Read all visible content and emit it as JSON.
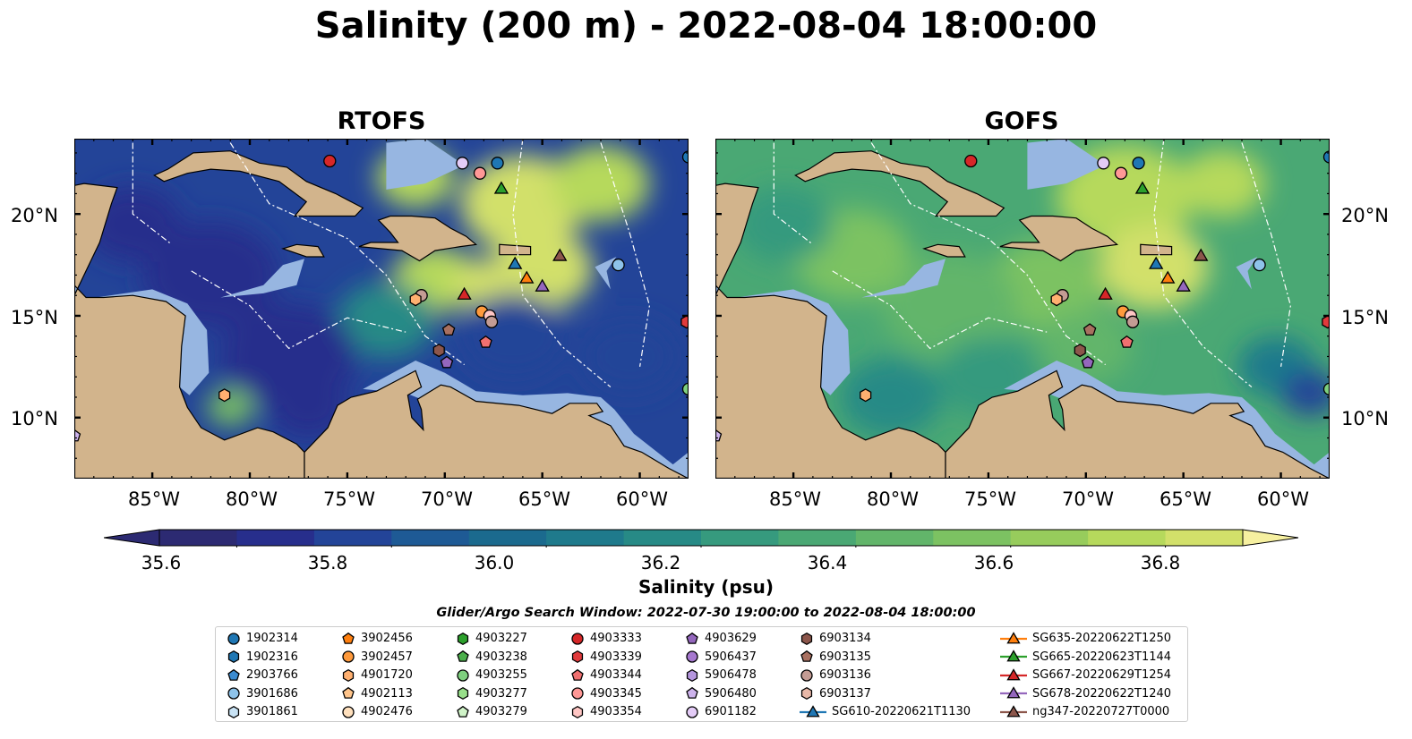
{
  "title": "Salinity (200 m) - 2022-08-04 18:00:00",
  "panels": [
    {
      "title": "RTOFS",
      "id": "rtofs",
      "field": "rtofs"
    },
    {
      "title": "GOFS",
      "id": "gofs",
      "field": "gofs"
    }
  ],
  "map_extent": {
    "lon_min": -89,
    "lon_max": -57.5,
    "lat_min": 7,
    "lat_max": 23.7
  },
  "lat_ticks": [
    {
      "value": 10,
      "label": "10°N"
    },
    {
      "value": 15,
      "label": "15°N"
    },
    {
      "value": 20,
      "label": "20°N"
    }
  ],
  "lon_ticks": [
    {
      "value": -85,
      "label": "85°W"
    },
    {
      "value": -80,
      "label": "80°W"
    },
    {
      "value": -75,
      "label": "75°W"
    },
    {
      "value": -70,
      "label": "70°W"
    },
    {
      "value": -65,
      "label": "65°W"
    },
    {
      "value": -60,
      "label": "60°W"
    }
  ],
  "colorbar": {
    "label": "Salinity (psu)",
    "min": 35.5,
    "max": 36.9,
    "step": 0.1,
    "extend": "both",
    "ticks": [
      {
        "value": 35.6,
        "label": "35.6"
      },
      {
        "value": 35.8,
        "label": "35.8"
      },
      {
        "value": 36.0,
        "label": "36.0"
      },
      {
        "value": 36.2,
        "label": "36.2"
      },
      {
        "value": 36.4,
        "label": "36.4"
      },
      {
        "value": 36.6,
        "label": "36.6"
      },
      {
        "value": 36.8,
        "label": "36.8"
      }
    ],
    "colors": [
      "#2c2a72",
      "#272e8c",
      "#234498",
      "#1e5a95",
      "#1b6a8e",
      "#1f7a8c",
      "#278a86",
      "#369a7e",
      "#4aa874",
      "#62b56a",
      "#7cc262",
      "#97cc5c",
      "#b6d95c",
      "#d2e06a",
      "#f6f0a0"
    ]
  },
  "colors": {
    "land": "#d2b48c",
    "shallow": "#97b6e1",
    "coast": "#000000"
  },
  "legend": {
    "title": "Glider/Argo Search Window: 2022-07-30 19:00:00 to 2022-08-04 18:00:00",
    "columns": [
      [
        {
          "label": "1902314",
          "marker": "circle",
          "color": "#1f77b4"
        },
        {
          "label": "1902316",
          "marker": "hexagon",
          "color": "#1f77b4"
        },
        {
          "label": "2903766",
          "marker": "pentagon",
          "color": "#3b8bd0"
        },
        {
          "label": "3901686",
          "marker": "circle",
          "color": "#8ec3ea"
        },
        {
          "label": "3901861",
          "marker": "hexagon",
          "color": "#c9e3f5"
        }
      ],
      [
        {
          "label": "3902456",
          "marker": "pentagon",
          "color": "#ff7f0e"
        },
        {
          "label": "3902457",
          "marker": "circle",
          "color": "#ff9a3c"
        },
        {
          "label": "4901720",
          "marker": "hexagon",
          "color": "#ffb070"
        },
        {
          "label": "4902113",
          "marker": "pentagon",
          "color": "#ffc48a"
        },
        {
          "label": "4902476",
          "marker": "circle",
          "color": "#ffe0bd"
        }
      ],
      [
        {
          "label": "4903227",
          "marker": "hexagon",
          "color": "#2ca02c"
        },
        {
          "label": "4903238",
          "marker": "pentagon",
          "color": "#4caf4c"
        },
        {
          "label": "4903255",
          "marker": "circle",
          "color": "#7fd07f"
        },
        {
          "label": "4903277",
          "marker": "hexagon",
          "color": "#98df8a"
        },
        {
          "label": "4903279",
          "marker": "pentagon",
          "color": "#d0f4c8"
        }
      ],
      [
        {
          "label": "4903333",
          "marker": "circle",
          "color": "#d62728"
        },
        {
          "label": "4903339",
          "marker": "hexagon",
          "color": "#e03a3c"
        },
        {
          "label": "4903344",
          "marker": "pentagon",
          "color": "#f07070"
        },
        {
          "label": "4903345",
          "marker": "circle",
          "color": "#ff9896"
        },
        {
          "label": "4903354",
          "marker": "hexagon",
          "color": "#ffc6c4"
        }
      ],
      [
        {
          "label": "4903629",
          "marker": "pentagon",
          "color": "#9467bd"
        },
        {
          "label": "5906437",
          "marker": "circle",
          "color": "#a678cf"
        },
        {
          "label": "5906478",
          "marker": "hexagon",
          "color": "#b596de"
        },
        {
          "label": "5906480",
          "marker": "pentagon",
          "color": "#cdb3ec"
        },
        {
          "label": "6901182",
          "marker": "circle",
          "color": "#e4ccf7"
        }
      ],
      [
        {
          "label": "6903134",
          "marker": "hexagon",
          "color": "#8c564b"
        },
        {
          "label": "6903135",
          "marker": "pentagon",
          "color": "#a87060"
        },
        {
          "label": "6903136",
          "marker": "circle",
          "color": "#c49c94"
        },
        {
          "label": "6903137",
          "marker": "hexagon",
          "color": "#e8b8a8"
        },
        {
          "label": "SG610-20220621T1130",
          "marker": "triangle-line",
          "color": "#1f77b4"
        }
      ],
      [
        {
          "label": "SG635-20220622T1250",
          "marker": "triangle-line",
          "color": "#ff7f0e"
        },
        {
          "label": "SG665-20220623T1144",
          "marker": "triangle-line",
          "color": "#2ca02c"
        },
        {
          "label": "SG667-20220629T1254",
          "marker": "triangle-line",
          "color": "#d62728"
        },
        {
          "label": "SG678-20220622T1240",
          "marker": "triangle-line",
          "color": "#9467bd"
        },
        {
          "label": "ng347-20220727T0000",
          "marker": "triangle-line",
          "color": "#8c564b"
        }
      ]
    ]
  },
  "observations": [
    {
      "marker": "circle",
      "color": "#d62728",
      "lon": -75.9,
      "lat": 22.6
    },
    {
      "marker": "circle",
      "color": "#e4ccf7",
      "lon": -69.1,
      "lat": 22.5
    },
    {
      "marker": "circle",
      "color": "#1f77b4",
      "lon": -67.3,
      "lat": 22.5
    },
    {
      "marker": "circle",
      "color": "#ff9896",
      "lon": -68.2,
      "lat": 22.0
    },
    {
      "marker": "triangle",
      "color": "#2ca02c",
      "lon": -67.1,
      "lat": 21.2
    },
    {
      "marker": "circle",
      "color": "#1f77b4",
      "lon": -57.5,
      "lat": 22.8
    },
    {
      "marker": "triangle",
      "color": "#1f77b4",
      "lon": -66.4,
      "lat": 17.5
    },
    {
      "marker": "triangle",
      "color": "#8c564b",
      "lon": -64.1,
      "lat": 17.9
    },
    {
      "marker": "circle",
      "color": "#8ec3ea",
      "lon": -61.1,
      "lat": 17.5
    },
    {
      "marker": "triangle",
      "color": "#ff7f0e",
      "lon": -65.8,
      "lat": 16.8
    },
    {
      "marker": "triangle",
      "color": "#9467bd",
      "lon": -65.0,
      "lat": 16.4
    },
    {
      "marker": "circle",
      "color": "#c49c94",
      "lon": -71.2,
      "lat": 16.0
    },
    {
      "marker": "hexagon",
      "color": "#ffb070",
      "lon": -71.5,
      "lat": 15.8
    },
    {
      "marker": "triangle",
      "color": "#d62728",
      "lon": -69.0,
      "lat": 16.0
    },
    {
      "marker": "circle",
      "color": "#ff9a3c",
      "lon": -68.1,
      "lat": 15.2
    },
    {
      "marker": "circle",
      "color": "#ffc6c4",
      "lon": -67.7,
      "lat": 15.0
    },
    {
      "marker": "circle",
      "color": "#c49c94",
      "lon": -67.6,
      "lat": 14.7
    },
    {
      "marker": "pentagon",
      "color": "#a87060",
      "lon": -69.8,
      "lat": 14.3
    },
    {
      "marker": "hexagon",
      "color": "#8c564b",
      "lon": -70.3,
      "lat": 13.3
    },
    {
      "marker": "pentagon",
      "color": "#f07070",
      "lon": -67.9,
      "lat": 13.7
    },
    {
      "marker": "pentagon",
      "color": "#9467bd",
      "lon": -69.9,
      "lat": 12.7
    },
    {
      "marker": "hexagon",
      "color": "#ffb070",
      "lon": -81.3,
      "lat": 11.1
    },
    {
      "marker": "hexagon",
      "color": "#e03a3c",
      "lon": -57.6,
      "lat": 14.7
    },
    {
      "marker": "pentagon",
      "color": "#cdb3ec",
      "lon": -89.0,
      "lat": 9.1
    },
    {
      "marker": "circle",
      "color": "#7fd07f",
      "lon": -57.5,
      "lat": 11.4
    }
  ]
}
